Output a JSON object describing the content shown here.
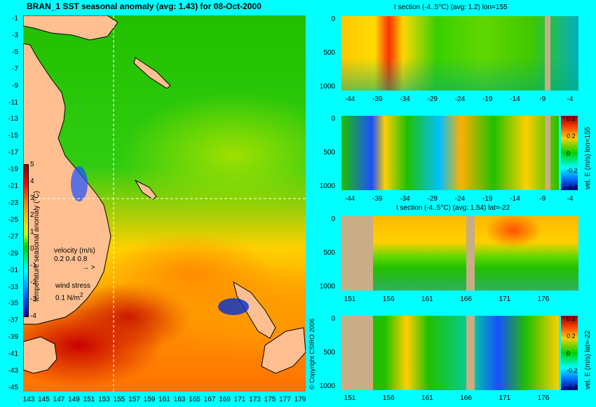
{
  "map": {
    "title": "BRAN_1 SST seasonal anomaly (avg: 1.43) for 08-Oct-2000",
    "lat_ticks": [
      "-1",
      "-3",
      "-5",
      "-7",
      "-9",
      "-11",
      "-13",
      "-15",
      "-17",
      "-19",
      "-21",
      "-23",
      "-25",
      "-27",
      "-29",
      "-31",
      "-33",
      "-35",
      "-37",
      "-39",
      "-41",
      "-43",
      "-45"
    ],
    "lon_ticks": [
      "143",
      "145",
      "147",
      "149",
      "151",
      "153",
      "155",
      "157",
      "159",
      "161",
      "163",
      "165",
      "167",
      "169",
      "171",
      "173",
      "175",
      "177",
      "179"
    ],
    "colorbar": {
      "ticks": [
        "5",
        "4",
        "3",
        "2",
        "1",
        "0",
        "-1",
        "-2",
        "-3",
        "-4"
      ],
      "label": "temperature seasonal anomaly (°C)"
    },
    "velocity_legend": {
      "title": "velocity (m/s)",
      "values": "0.2 0.4 0.8"
    },
    "wind_legend": {
      "title": "wind stress",
      "value": "0.1 N/m",
      "sup": "2"
    }
  },
  "panels": [
    {
      "title": "t section (-4..5°C) (avg: 1.2) lon=155",
      "y_ticks": [
        "0",
        "500",
        "1000"
      ],
      "x_ticks": [
        "-44",
        "-39",
        "-34",
        "-29",
        "-24",
        "-19",
        "-14",
        "-9",
        "-4"
      ]
    },
    {
      "title": "",
      "y_ticks": [
        "0",
        "500",
        "1000"
      ],
      "x_ticks": [
        "-44",
        "-39",
        "-34",
        "-29",
        "-24",
        "-19",
        "-14",
        "-9",
        "-4"
      ],
      "colorbar_ticks": [
        "0.4",
        "0.2",
        "0",
        "-0.2",
        "-0.4"
      ],
      "side_label": "vel. E (m/s) lon=155"
    },
    {
      "title": "t section (-4..5°C) (avg: 1.54) lat=-22",
      "y_ticks": [
        "0",
        "500",
        "1000"
      ],
      "x_ticks": [
        "151",
        "156",
        "161",
        "166",
        "171",
        "176"
      ]
    },
    {
      "title": "",
      "y_ticks": [
        "0",
        "500",
        "1000"
      ],
      "x_ticks": [
        "151",
        "156",
        "161",
        "166",
        "171",
        "176"
      ],
      "colorbar_ticks": [
        "0.4",
        "0.2",
        "0",
        "-0.2",
        "-0.4"
      ],
      "side_label": "vel. E (m/s) lat=-22"
    }
  ],
  "copyright": "© Copyright CSIRO 2006",
  "colors": {
    "background": "#00ffff",
    "land_map": "#ffbf90",
    "land_section": "#c8ad86",
    "warm": "#ff3000",
    "cool": "#1850ff"
  }
}
